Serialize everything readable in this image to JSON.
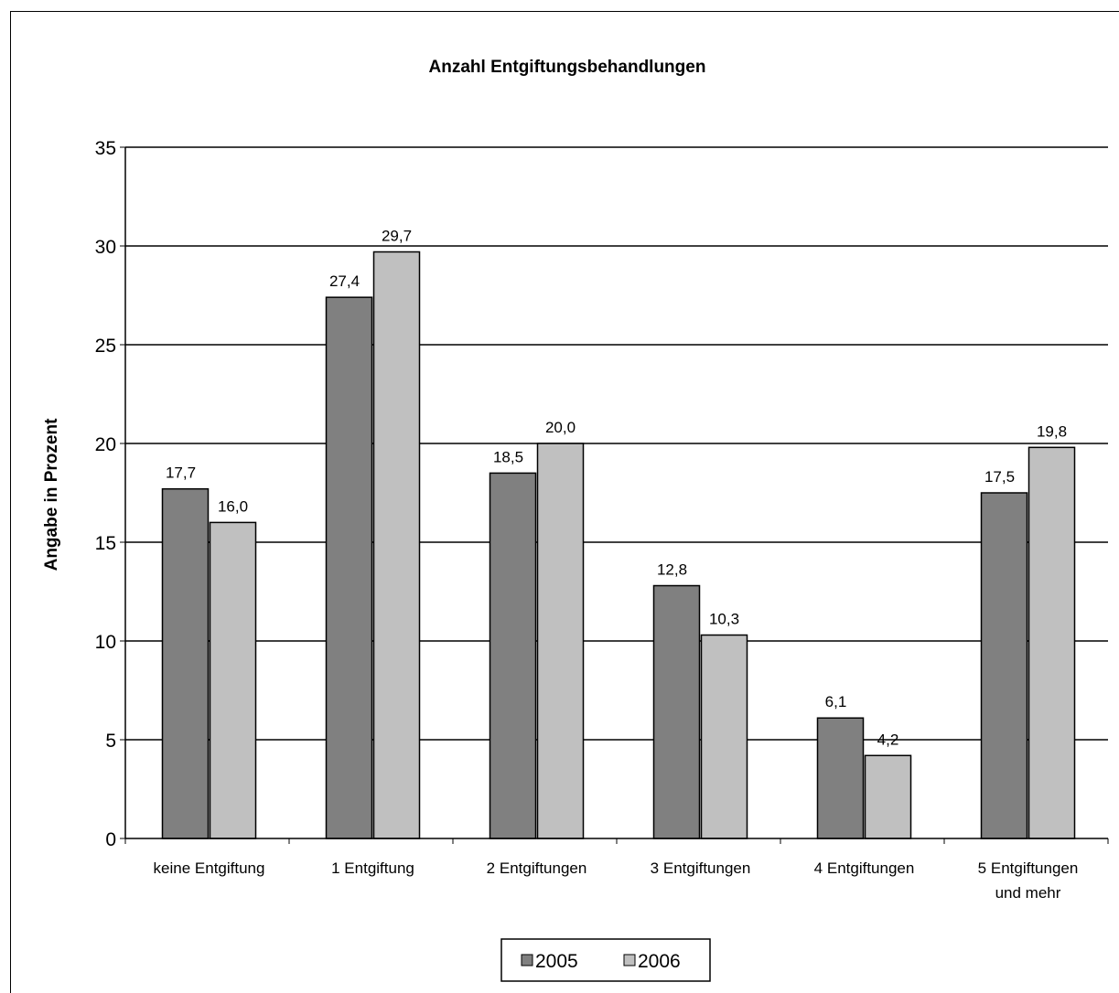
{
  "chart_data": {
    "type": "bar",
    "title": "Anzahl Entgiftungsbehandlungen",
    "xlabel": "",
    "ylabel": "Angabe in Prozent",
    "ylim": [
      0,
      35
    ],
    "yticks": [
      0,
      5,
      10,
      15,
      20,
      25,
      30,
      35
    ],
    "grid": true,
    "legend_position": "bottom",
    "categories": [
      [
        "keine Entgiftung"
      ],
      [
        "1 Entgiftung"
      ],
      [
        "2 Entgiftungen"
      ],
      [
        "3 Entgiftungen"
      ],
      [
        "4 Entgiftungen"
      ],
      [
        "5 Entgiftungen",
        "und mehr"
      ]
    ],
    "series": [
      {
        "name": "2005",
        "color": "#808080",
        "values": [
          17.7,
          27.4,
          18.5,
          12.8,
          6.1,
          17.5
        ],
        "labels": [
          "17,7",
          "27,4",
          "18,5",
          "12,8",
          "6,1",
          "17,5"
        ]
      },
      {
        "name": "2006",
        "color": "#c0c0c0",
        "values": [
          16.0,
          29.7,
          20.0,
          10.3,
          4.2,
          19.8
        ],
        "labels": [
          "16,0",
          "29,7",
          "20,0",
          "10,3",
          "4,2",
          "19,8"
        ]
      }
    ]
  }
}
